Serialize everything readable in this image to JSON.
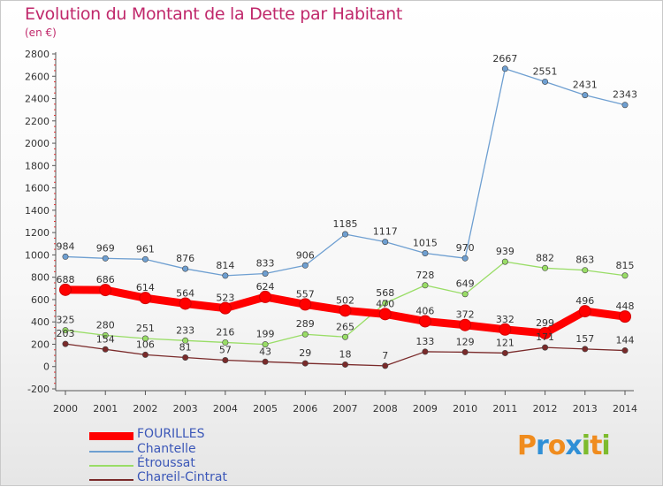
{
  "title": "Evolution du Montant de la Dette par Habitant",
  "unit_label": "(en €)",
  "logo_text": "Proxiti",
  "chart_data": {
    "type": "line",
    "title": "Evolution du Montant de la Dette par Habitant",
    "ylabel": "(en €)",
    "xlabel": "",
    "x": [
      2000,
      2001,
      2002,
      2003,
      2004,
      2005,
      2006,
      2007,
      2008,
      2009,
      2010,
      2011,
      2012,
      2013,
      2014
    ],
    "ylim": [
      -200,
      2800
    ],
    "yticks": [
      -200,
      0,
      200,
      400,
      600,
      800,
      1000,
      1200,
      1400,
      1600,
      1800,
      2000,
      2200,
      2400,
      2600,
      2800
    ],
    "grid": false,
    "legend_position": "bottom-left",
    "series": [
      {
        "name": "FOURILLES",
        "color": "#ff0000",
        "values": [
          688,
          686,
          614,
          564,
          523,
          624,
          557,
          502,
          470,
          406,
          372,
          332,
          299,
          496,
          448
        ]
      },
      {
        "name": "Chantelle",
        "color": "#6e9fd1",
        "values": [
          984,
          969,
          961,
          876,
          814,
          833,
          906,
          1185,
          1117,
          1015,
          970,
          2667,
          2551,
          2431,
          2343
        ]
      },
      {
        "name": "Étroussat",
        "color": "#99dd66",
        "values": [
          325,
          280,
          251,
          233,
          216,
          199,
          289,
          265,
          568,
          728,
          649,
          939,
          882,
          863,
          815
        ]
      },
      {
        "name": "Chareil-Cintrat",
        "color": "#7a2a2a",
        "values": [
          203,
          154,
          106,
          81,
          57,
          43,
          29,
          18,
          7,
          133,
          129,
          121,
          171,
          157,
          144
        ]
      }
    ]
  }
}
